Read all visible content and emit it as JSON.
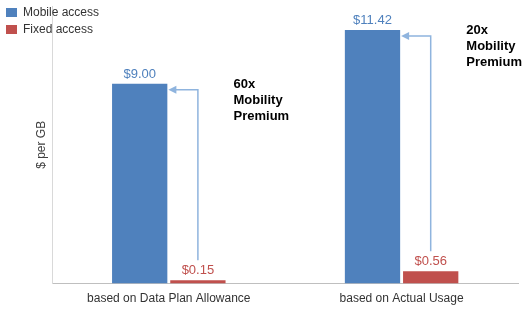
{
  "chart_data": {
    "type": "bar",
    "categories": [
      "based on Data Plan Allowance",
      "based on Actual Usage"
    ],
    "series": [
      {
        "name": "Mobile access",
        "color": "#4f81bd",
        "values": [
          9.0,
          11.42
        ],
        "value_labels": [
          "$9.00",
          "$11.42"
        ]
      },
      {
        "name": "Fixed access",
        "color": "#c0504d",
        "values": [
          0.15,
          0.56
        ],
        "value_labels": [
          "$0.15",
          "$0.56"
        ]
      }
    ],
    "y_label": "$ per GB",
    "ylim": [
      0,
      12.5
    ],
    "tick_labels": "x",
    "grid": false,
    "legend": "upper left",
    "data_labels": true,
    "annotations": [
      {
        "text": "60x Mobility Premium",
        "category": "based on Data Plan Allowance"
      },
      {
        "text": "20x Mobility Premium",
        "category": "based on Actual Usage"
      }
    ]
  }
}
